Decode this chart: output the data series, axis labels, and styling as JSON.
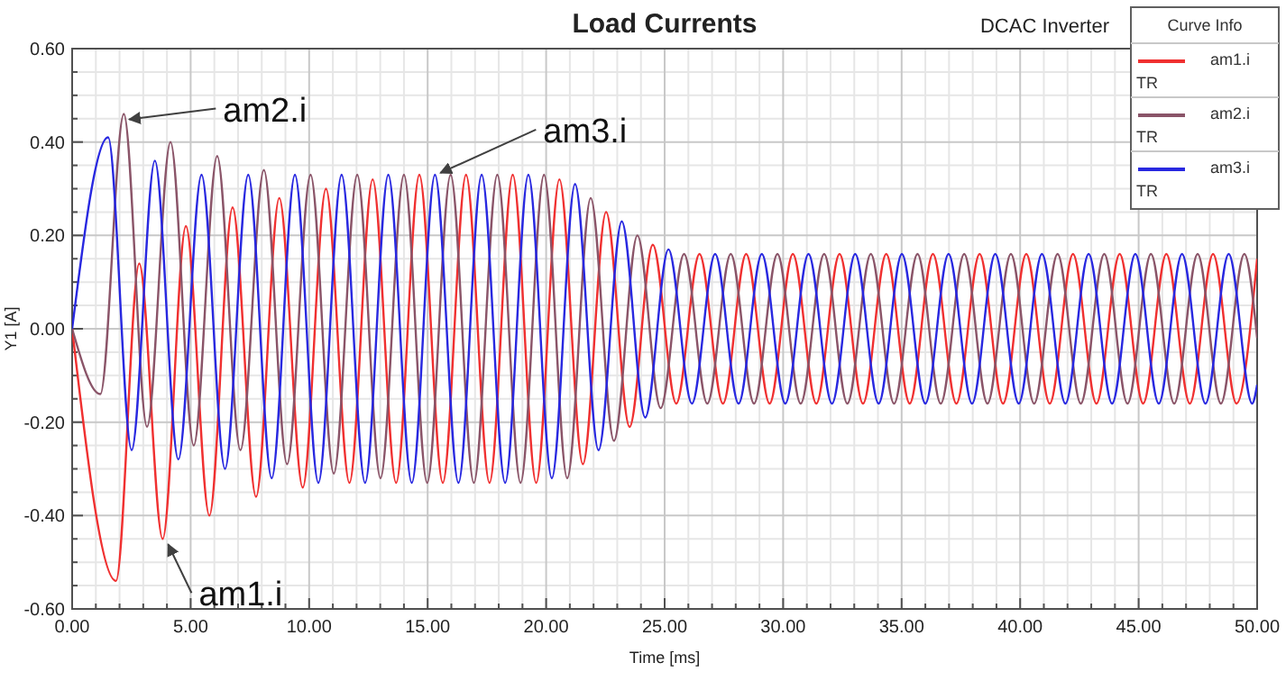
{
  "chart_data": {
    "type": "line",
    "title": "Load Currents",
    "xlabel": "Time [ms]",
    "ylabel": "Y1 [A]",
    "legend_title": "Curve Info",
    "legend": "top right",
    "grid": true,
    "marker": "none",
    "line_style": "solid",
    "xlim": [
      0,
      50
    ],
    "ylim": [
      -0.6,
      0.6
    ],
    "xticks": [
      {
        "value": 0,
        "label": "0.00"
      },
      {
        "value": 5,
        "label": "5.00"
      },
      {
        "value": 10,
        "label": "10.00"
      },
      {
        "value": 15,
        "label": "15.00"
      },
      {
        "value": 20,
        "label": "20.00"
      },
      {
        "value": 25,
        "label": "25.00"
      },
      {
        "value": 30,
        "label": "30.00"
      },
      {
        "value": 35,
        "label": "35.00"
      },
      {
        "value": 40,
        "label": "40.00"
      },
      {
        "value": 45,
        "label": "45.00"
      },
      {
        "value": 50,
        "label": "50.00"
      }
    ],
    "yticks": [
      {
        "value": -0.6,
        "label": "-0.60"
      },
      {
        "value": -0.4,
        "label": "-0.40"
      },
      {
        "value": -0.2,
        "label": "-0.20"
      },
      {
        "value": 0,
        "label": "0.00"
      },
      {
        "value": 0.2,
        "label": "0.20"
      },
      {
        "value": 0.4,
        "label": "0.40"
      },
      {
        "value": 0.6,
        "label": "0.60"
      }
    ],
    "annotations": [
      "DCAC Inverter",
      "TR",
      "TR",
      "TR",
      {
        "text": "am2.i",
        "x": 2.18,
        "y": 0.46
      },
      {
        "text": "am3.i",
        "x": 15.31,
        "y": 0.33
      },
      {
        "text": "am1.i",
        "x": 3.82,
        "y": -0.45
      }
    ],
    "series": [
      {
        "name": "am1.i",
        "color": "#f03030",
        "x": [
          0,
          1.85,
          2.83,
          3.82,
          4.8,
          5.79,
          6.77,
          7.76,
          8.74,
          9.73,
          10.71,
          11.7,
          12.68,
          13.67,
          14.65,
          15.64,
          16.62,
          17.61,
          18.59,
          19.58,
          20.56,
          21.55,
          22.53,
          23.52,
          24.5,
          25.49,
          26.47,
          27.46,
          28.44,
          29.43,
          30.41,
          31.4,
          32.38,
          33.37,
          34.35,
          35.34,
          36.32,
          37.31,
          38.29,
          39.28,
          40.26,
          41.25,
          42.23,
          43.22,
          44.2,
          45.19,
          46.17,
          47.16,
          48.14,
          49.13,
          50
        ],
        "values": [
          0,
          -0.54,
          0.14,
          -0.45,
          0.22,
          -0.4,
          0.26,
          -0.36,
          0.28,
          -0.34,
          0.3,
          -0.33,
          0.32,
          -0.33,
          0.33,
          -0.33,
          0.33,
          -0.33,
          0.33,
          -0.33,
          0.32,
          -0.29,
          0.25,
          -0.21,
          0.18,
          -0.16,
          0.16,
          -0.16,
          0.16,
          -0.16,
          0.16,
          -0.16,
          0.16,
          -0.16,
          0.16,
          -0.16,
          0.16,
          -0.16,
          0.16,
          -0.16,
          0.16,
          -0.16,
          0.16,
          -0.16,
          0.16,
          -0.16,
          0.16,
          -0.16,
          0.16,
          -0.16,
          0.15
        ]
      },
      {
        "name": "am2.i",
        "color": "#8a5468",
        "x": [
          0,
          1.19,
          2.18,
          3.16,
          4.15,
          5.13,
          6.12,
          7.1,
          8.09,
          9.07,
          10.06,
          11.04,
          12.03,
          13.01,
          14,
          14.98,
          15.97,
          16.95,
          17.94,
          18.92,
          19.91,
          20.89,
          21.88,
          22.86,
          23.85,
          24.83,
          25.82,
          26.8,
          27.79,
          28.77,
          29.76,
          30.74,
          31.73,
          32.71,
          33.7,
          34.68,
          35.67,
          36.65,
          37.64,
          38.62,
          39.61,
          40.59,
          41.58,
          42.56,
          43.55,
          44.53,
          45.52,
          46.5,
          47.49,
          48.47,
          49.46,
          50
        ],
        "values": [
          0,
          -0.14,
          0.46,
          -0.21,
          0.4,
          -0.25,
          0.37,
          -0.26,
          0.34,
          -0.29,
          0.33,
          -0.31,
          0.33,
          -0.32,
          0.33,
          -0.33,
          0.33,
          -0.33,
          0.33,
          -0.33,
          0.33,
          -0.32,
          0.28,
          -0.24,
          0.2,
          -0.17,
          0.16,
          -0.16,
          0.16,
          -0.16,
          0.16,
          -0.16,
          0.16,
          -0.16,
          0.16,
          -0.16,
          0.16,
          -0.16,
          0.16,
          -0.16,
          0.16,
          -0.16,
          0.16,
          -0.16,
          0.16,
          -0.16,
          0.16,
          -0.16,
          0.16,
          -0.16,
          0.16,
          -0.02
        ]
      },
      {
        "name": "am3.i",
        "color": "#2828e0",
        "x": [
          0,
          1.52,
          2.51,
          3.49,
          4.48,
          5.46,
          6.45,
          7.43,
          8.42,
          9.4,
          10.39,
          11.37,
          12.36,
          13.34,
          14.33,
          15.31,
          16.3,
          17.28,
          18.27,
          19.25,
          20.24,
          21.22,
          22.21,
          23.19,
          24.18,
          25.16,
          26.15,
          27.13,
          28.12,
          29.1,
          30.09,
          31.07,
          32.06,
          33.04,
          34.03,
          35.01,
          36,
          36.98,
          37.97,
          38.95,
          39.94,
          40.92,
          41.91,
          42.89,
          43.88,
          44.86,
          45.85,
          46.83,
          47.82,
          48.8,
          49.79,
          50
        ],
        "values": [
          0,
          0.41,
          -0.26,
          0.36,
          -0.28,
          0.33,
          -0.3,
          0.33,
          -0.32,
          0.33,
          -0.33,
          0.33,
          -0.33,
          0.33,
          -0.33,
          0.33,
          -0.33,
          0.33,
          -0.33,
          0.33,
          -0.32,
          0.31,
          -0.26,
          0.23,
          -0.19,
          0.17,
          -0.16,
          0.16,
          -0.16,
          0.16,
          -0.16,
          0.16,
          -0.16,
          0.16,
          -0.16,
          0.16,
          -0.16,
          0.16,
          -0.16,
          0.16,
          -0.16,
          0.16,
          -0.16,
          0.16,
          -0.16,
          0.16,
          -0.16,
          0.16,
          -0.16,
          0.16,
          -0.16,
          -0.12
        ]
      }
    ]
  }
}
